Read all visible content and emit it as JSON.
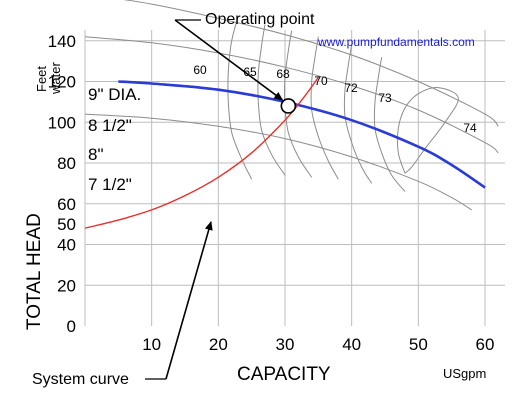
{
  "chart_data": {
    "type": "line",
    "source": "www.pumpfundamentals.com",
    "xlabel": "CAPACITY",
    "xunit": "USgpm",
    "ylabel": "TOTAL HEAD",
    "yunit": [
      "Feet",
      "water"
    ],
    "xlim": [
      0,
      63
    ],
    "ylim": [
      0,
      160
    ],
    "xticks": [
      10,
      20,
      30,
      40,
      50,
      60
    ],
    "yticks": [
      0,
      20,
      40,
      50,
      60,
      80,
      100,
      120,
      140
    ],
    "grid": true,
    "impeller_curves": [
      {
        "label": "9\" DIA.",
        "x": [
          0,
          10,
          20,
          30,
          40,
          50,
          60,
          62
        ],
        "y": [
          163,
          158,
          151,
          143,
          133,
          120,
          104,
          98
        ]
      },
      {
        "label": "8 1/2\"",
        "x": [
          0,
          10,
          20,
          30,
          40,
          50,
          60,
          62
        ],
        "y": [
          142,
          139,
          134,
          127,
          118,
          106,
          90,
          85
        ]
      },
      {
        "label": "8\"",
        "x": [
          5,
          10,
          20,
          30,
          40,
          50,
          55,
          60
        ],
        "y": [
          120,
          119,
          116,
          110,
          101,
          88,
          79,
          68
        ]
      },
      {
        "label": "7 1/2\"",
        "x": [
          0,
          10,
          20,
          30,
          40,
          50,
          55,
          58
        ],
        "y": [
          104,
          102,
          98,
          92,
          83,
          71,
          63,
          57
        ]
      }
    ],
    "highlighted_curve": "8\"",
    "efficiency_labels": [
      "60",
      "65",
      "68",
      "70",
      "72",
      "73",
      "74"
    ],
    "efficiency_curves": [
      {
        "label": "60",
        "x": [
          23,
          22,
          21.5,
          21.5,
          22,
          23.5,
          25
        ],
        "y": [
          152,
          140,
          125,
          110,
          95,
          82,
          72
        ]
      },
      {
        "label": "65",
        "x": [
          27,
          26.5,
          26,
          26,
          26.5,
          28,
          30
        ],
        "y": [
          148,
          138,
          124,
          110,
          96,
          84,
          74
        ]
      },
      {
        "label": "68",
        "x": [
          31,
          30.5,
          30,
          30,
          30.5,
          32,
          34
        ],
        "y": [
          145,
          135,
          122,
          108,
          95,
          83,
          73
        ]
      },
      {
        "label": "70",
        "x": [
          35,
          34.5,
          34,
          34,
          35,
          36.5,
          38
        ],
        "y": [
          142,
          132,
          120,
          106,
          93,
          81,
          72
        ]
      },
      {
        "label": "72",
        "x": [
          40,
          39.5,
          39,
          39,
          40,
          41.5,
          43
        ],
        "y": [
          138,
          128,
          116,
          103,
          90,
          78,
          70
        ]
      },
      {
        "label": "73",
        "x": [
          44.5,
          44,
          43.5,
          43.5,
          44.5,
          46,
          48
        ],
        "y": [
          132,
          122,
          110,
          97,
          85,
          74,
          66
        ]
      },
      {
        "label": "74",
        "x": [
          48,
          47,
          47,
          48,
          50,
          53,
          56,
          54,
          51,
          49,
          48
        ],
        "y": [
          75,
          85,
          97,
          107,
          114,
          117,
          112,
          100,
          87,
          78,
          75
        ]
      }
    ],
    "system_curve": {
      "label": "System curve",
      "x": [
        0,
        5,
        10,
        15,
        20,
        25,
        30,
        33,
        35
      ],
      "y": [
        48,
        52,
        57,
        64,
        73,
        85,
        101,
        113,
        122
      ]
    },
    "operating_point": {
      "label": "Operating point",
      "x": 30.5,
      "y": 108
    }
  }
}
